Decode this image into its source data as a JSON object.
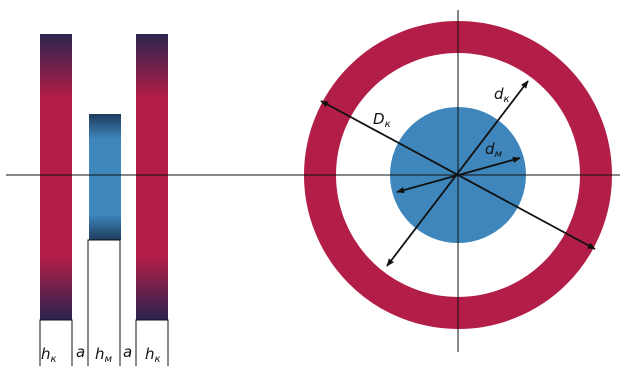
{
  "colors": {
    "coil": "#b21e47",
    "coil_dark": "#2c234f",
    "magnet": "#3e86bb",
    "magnet_dark": "#1e3c5e",
    "axis": "#111111",
    "background": "#ffffff"
  },
  "side_view": {
    "labels": {
      "h_coil_left": {
        "main": "h",
        "sub": "к"
      },
      "gap_left": "a",
      "h_magnet": {
        "main": "h",
        "sub": "м"
      },
      "gap_right": "a",
      "h_coil_right": {
        "main": "h",
        "sub": "к"
      }
    }
  },
  "top_view": {
    "labels": {
      "outer_diameter": {
        "main": "D",
        "sub": "к"
      },
      "inner_diameter": {
        "main": "d",
        "sub": "к"
      },
      "magnet_diameter": {
        "main": "d",
        "sub": "м"
      }
    }
  }
}
